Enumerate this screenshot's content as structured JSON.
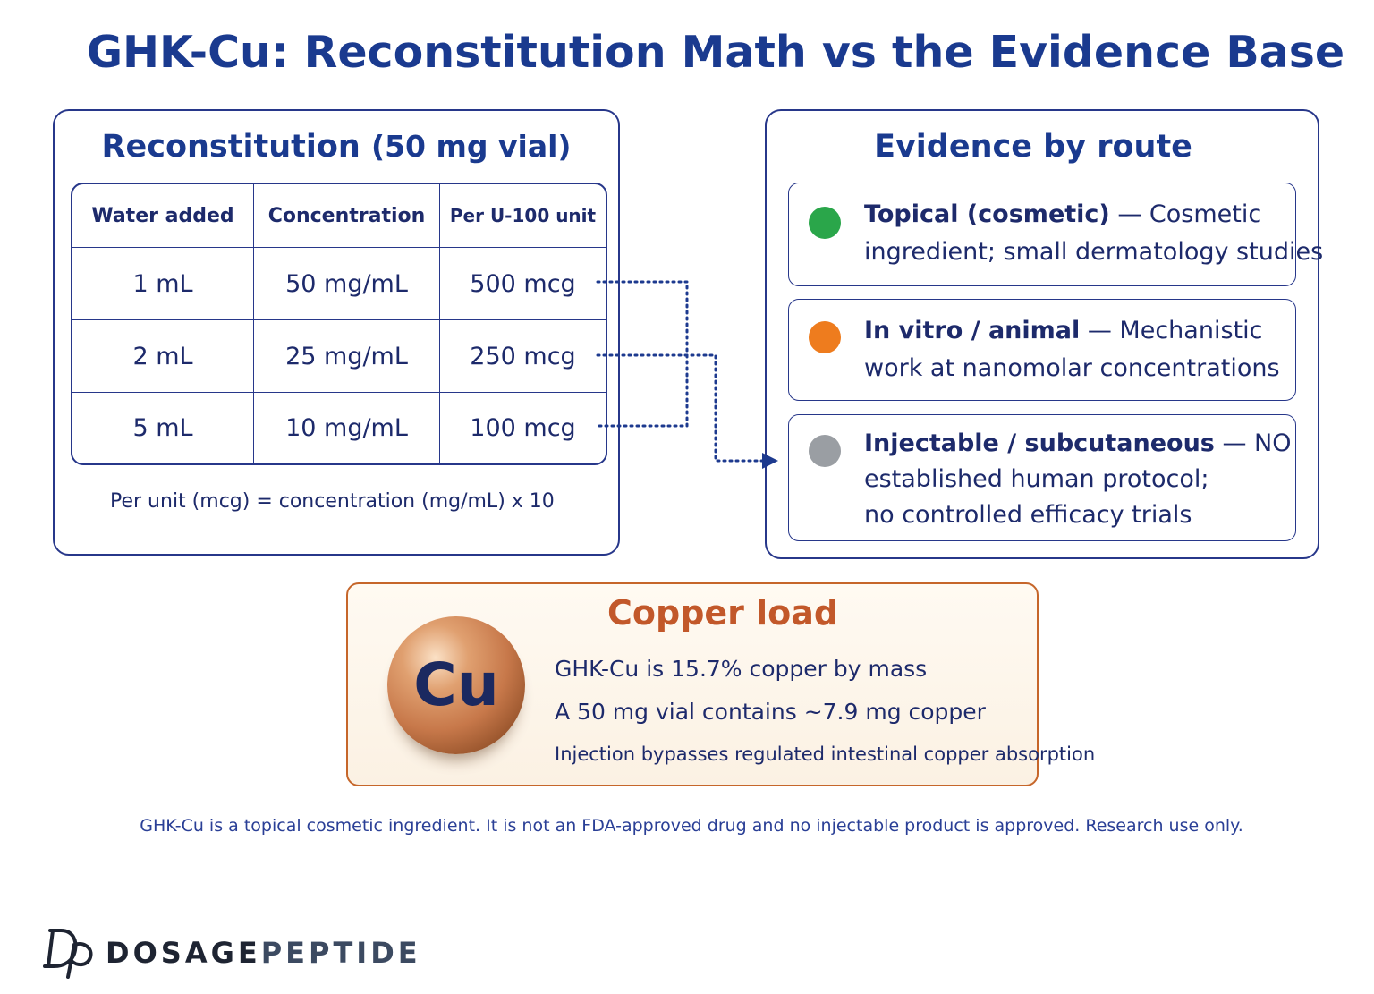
{
  "title": "GHK-Cu: Reconstitution Math vs the Evidence Base",
  "reconstitution": {
    "title": "Reconstitution",
    "title_sub": "(50 mg vial)",
    "headers": [
      "Water added",
      "Concentration",
      "Per U-100 unit"
    ],
    "rows": [
      [
        "1 mL",
        "50 mg/mL",
        "500 mcg"
      ],
      [
        "2 mL",
        "25 mg/mL",
        "250 mcg"
      ],
      [
        "5 mL",
        "10 mg/mL",
        "100 mcg"
      ]
    ],
    "formula": "Per unit (mcg) = concentration (mg/mL) x 10"
  },
  "evidence": {
    "title": "Evidence by route",
    "items": [
      {
        "bold": "Topical (cosmetic)",
        "rest": " — Cosmetic",
        "lines": [
          "ingredient; small dermatology studies"
        ],
        "color": "#2aa64a"
      },
      {
        "bold": "In vitro / animal",
        "rest": " — Mechanistic",
        "lines": [
          "work at nanomolar concentrations"
        ],
        "color": "#ee7c1e"
      },
      {
        "bold": "Injectable / subcutaneous",
        "rest": "  — NO",
        "lines": [
          "established human protocol;",
          "no controlled efficacy trials"
        ],
        "color": "#9a9ea3"
      }
    ]
  },
  "copper": {
    "title": "Copper load",
    "symbol": "Cu",
    "line1": "GHK-Cu is 15.7% copper by mass",
    "line2": "A 50 mg vial contains ~7.9 mg copper",
    "line3": "Injection bypasses regulated intestinal copper absorption"
  },
  "disclaimer": "GHK-Cu is a topical cosmetic ingredient. It is not an FDA-approved drug and no injectable product is approved. Research use only.",
  "brand": {
    "part1": "DOSAGE",
    "part2": "PEPTIDE",
    "logo": "dp-monogram-icon"
  }
}
